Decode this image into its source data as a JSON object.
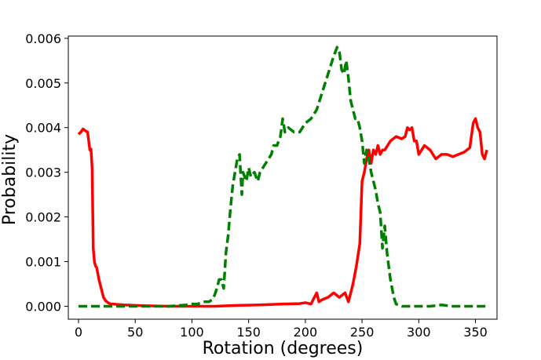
{
  "chart_data": {
    "type": "line",
    "title": "",
    "xlabel": "Rotation (degrees)",
    "ylabel": "Probability",
    "xlim": [
      -9,
      369
    ],
    "ylim": [
      -0.00029,
      0.00605
    ],
    "xticks": [
      0,
      50,
      100,
      150,
      200,
      250,
      300,
      350
    ],
    "xtick_labels": [
      "0",
      "50",
      "100",
      "150",
      "200",
      "250",
      "300",
      "350"
    ],
    "yticks": [
      0.0,
      0.001,
      0.002,
      0.003,
      0.004,
      0.005,
      0.006
    ],
    "ytick_labels": [
      "0.000",
      "0.001",
      "0.002",
      "0.003",
      "0.004",
      "0.005",
      "0.006"
    ],
    "grid": false,
    "legend": "none",
    "series": [
      {
        "color": "#ff0000",
        "style": "solid",
        "x": [
          0,
          2,
          4,
          6,
          8,
          10,
          11,
          12,
          13,
          14,
          15,
          16,
          18,
          20,
          22,
          24,
          26,
          28,
          30,
          35,
          40,
          50,
          60,
          80,
          100,
          120,
          140,
          160,
          180,
          195,
          200,
          205,
          208,
          210,
          212,
          215,
          220,
          225,
          230,
          235,
          238,
          240,
          242,
          245,
          248,
          250,
          252,
          254,
          256,
          258,
          260,
          262,
          264,
          266,
          268,
          270,
          275,
          280,
          285,
          288,
          290,
          292,
          294,
          296,
          298,
          300,
          305,
          310,
          315,
          320,
          325,
          330,
          335,
          340,
          345,
          348,
          350,
          352,
          354,
          356,
          358,
          360
        ],
        "y": [
          0.00385,
          0.0039,
          0.00397,
          0.00393,
          0.0039,
          0.0035,
          0.00352,
          0.0031,
          0.0013,
          0.001,
          0.0009,
          0.00087,
          0.0006,
          0.0004,
          0.0002,
          0.00012,
          8e-05,
          5e-05,
          5e-05,
          4e-05,
          3e-05,
          2e-05,
          1e-05,
          0.0,
          0.0,
          0.0,
          2e-05,
          3e-05,
          5e-05,
          6e-05,
          8e-05,
          5e-05,
          0.0002,
          0.0003,
          0.0001,
          0.00015,
          0.0002,
          0.0003,
          0.0002,
          0.0003,
          0.0001,
          0.0003,
          0.0005,
          0.0009,
          0.0014,
          0.0028,
          0.003,
          0.0033,
          0.0035,
          0.0032,
          0.0035,
          0.0034,
          0.0036,
          0.0034,
          0.0035,
          0.0035,
          0.0037,
          0.0038,
          0.00375,
          0.0038,
          0.004,
          0.00395,
          0.004,
          0.0037,
          0.0037,
          0.0034,
          0.0036,
          0.0035,
          0.0033,
          0.0034,
          0.0034,
          0.00335,
          0.0034,
          0.00345,
          0.00355,
          0.0041,
          0.0042,
          0.004,
          0.0039,
          0.0034,
          0.0033,
          0.0035
        ]
      },
      {
        "color": "#008000",
        "style": "dashed",
        "x": [
          0,
          20,
          40,
          60,
          80,
          90,
          95,
          100,
          105,
          110,
          115,
          118,
          120,
          122,
          124,
          126,
          128,
          130,
          132,
          134,
          136,
          138,
          140,
          142,
          144,
          145,
          148,
          150,
          152,
          155,
          158,
          160,
          165,
          170,
          172,
          175,
          178,
          180,
          182,
          185,
          190,
          195,
          200,
          205,
          210,
          215,
          220,
          225,
          228,
          230,
          232,
          234,
          236,
          238,
          240,
          242,
          244,
          246,
          248,
          250,
          252,
          254,
          256,
          258,
          260,
          262,
          264,
          266,
          268,
          270,
          272,
          275,
          278,
          280,
          285,
          290,
          300,
          310,
          320,
          330,
          340,
          350,
          360
        ],
        "y": [
          0.0,
          0.0,
          0.0,
          0.0,
          0.0,
          2e-05,
          3e-05,
          5e-05,
          5e-05,
          0.0001,
          0.0001,
          0.00015,
          0.00025,
          0.0004,
          0.0006,
          0.0006,
          0.0004,
          0.0012,
          0.0016,
          0.0022,
          0.0027,
          0.003,
          0.0033,
          0.0034,
          0.0025,
          0.003,
          0.0028,
          0.0031,
          0.0029,
          0.003,
          0.0028,
          0.003,
          0.0032,
          0.0034,
          0.0036,
          0.0036,
          0.0038,
          0.0042,
          0.0039,
          0.004,
          0.0039,
          0.0039,
          0.0041,
          0.0042,
          0.0044,
          0.0048,
          0.0052,
          0.0056,
          0.0058,
          0.0057,
          0.0053,
          0.0052,
          0.0055,
          0.0051,
          0.0046,
          0.0044,
          0.0042,
          0.0042,
          0.004,
          0.0037,
          0.0032,
          0.0035,
          0.0033,
          0.003,
          0.0028,
          0.0026,
          0.0023,
          0.0021,
          0.0013,
          0.0018,
          0.0012,
          0.0006,
          0.0002,
          5e-05,
          0.0,
          0.0,
          0.0,
          0.0,
          3e-05,
          0.0,
          0.0,
          0.0,
          0.0
        ]
      }
    ]
  }
}
